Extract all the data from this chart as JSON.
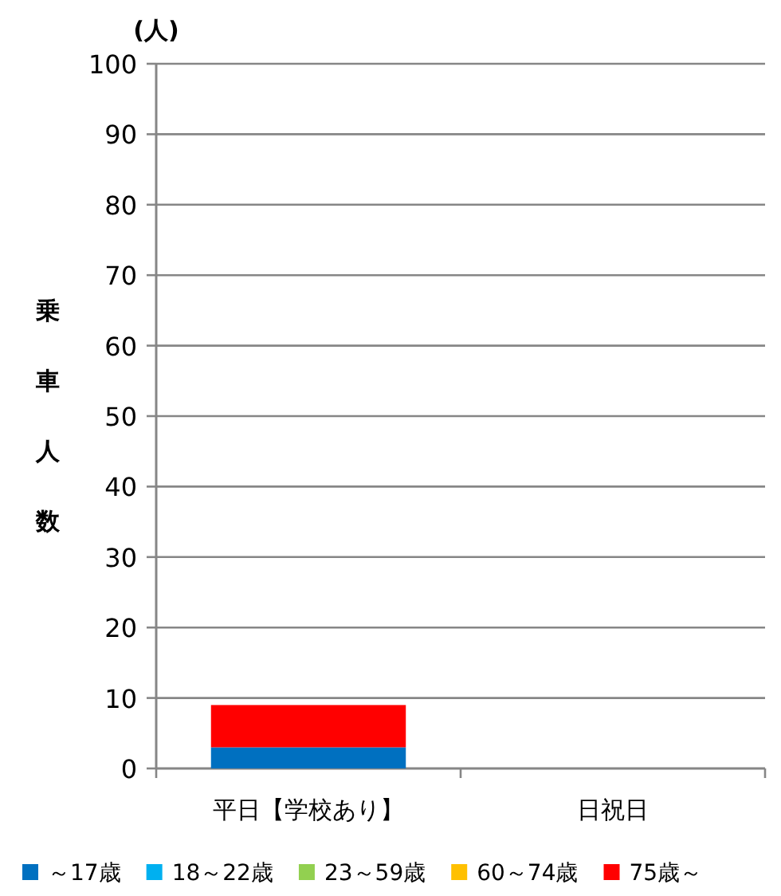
{
  "chart_data": {
    "type": "bar",
    "stacked": true,
    "ylabel": "乗車人数",
    "annotations": [
      "(人)"
    ],
    "categories": [
      "平日【学校あり】",
      "日祝日"
    ],
    "series": [
      {
        "name": "～17歳",
        "color": "#0070c0",
        "values": [
          3,
          0
        ]
      },
      {
        "name": "18～22歳",
        "color": "#00b0f0",
        "values": [
          0,
          0
        ]
      },
      {
        "name": "23～59歳",
        "color": "#92d050",
        "values": [
          0,
          0
        ]
      },
      {
        "name": "60～74歳",
        "color": "#ffc000",
        "values": [
          0,
          0
        ]
      },
      {
        "name": "75歳～",
        "color": "#ff0000",
        "values": [
          6,
          0
        ]
      }
    ],
    "ylim": [
      0,
      100
    ],
    "yticks": [
      0,
      10,
      20,
      30,
      40,
      50,
      60,
      70,
      80,
      90,
      100
    ],
    "grid": "y",
    "legend": "bottom"
  }
}
